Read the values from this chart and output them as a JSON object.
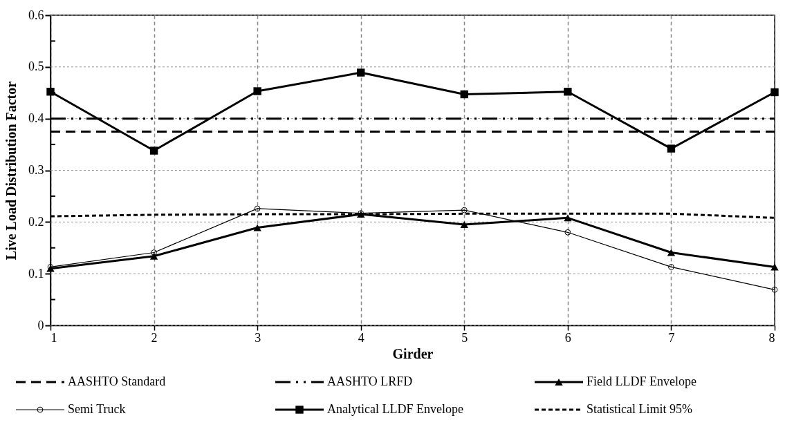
{
  "chart_data": {
    "type": "line",
    "xlabel": "Girder",
    "ylabel": "Live Load Distribution Factor",
    "x": [
      1,
      2,
      3,
      4,
      5,
      6,
      7,
      8
    ],
    "series": [
      {
        "name": "AASHTO Standard",
        "color": "#000000",
        "line_style": "dashed",
        "marker": "none",
        "values": [
          0.375,
          0.375,
          0.375,
          0.375,
          0.375,
          0.375,
          0.375,
          0.375
        ]
      },
      {
        "name": "AASHTO LRFD",
        "color": "#000000",
        "line_style": "dashdot",
        "marker": "none",
        "values": [
          0.4,
          0.4,
          0.4,
          0.4,
          0.4,
          0.4,
          0.4,
          0.4
        ]
      },
      {
        "name": "Field LLDF Envelope",
        "color": "#000000",
        "line_style": "solid",
        "marker": "triangle",
        "values": [
          0.11,
          0.134,
          0.189,
          0.215,
          0.195,
          0.208,
          0.141,
          0.113
        ]
      },
      {
        "name": "Semi Truck",
        "color": "#000000",
        "line_style": "solid",
        "marker": "circle",
        "values": [
          0.113,
          0.141,
          0.226,
          0.217,
          0.223,
          0.18,
          0.113,
          0.069
        ]
      },
      {
        "name": "Analytical LLDF Envelope",
        "color": "#000000",
        "line_style": "solid",
        "marker": "square",
        "values": [
          0.452,
          0.338,
          0.453,
          0.489,
          0.447,
          0.452,
          0.342,
          0.451
        ]
      },
      {
        "name": "Statistical Limit 95%",
        "color": "#000000",
        "line_style": "dotted",
        "marker": "none",
        "values": [
          0.211,
          0.214,
          0.215,
          0.215,
          0.216,
          0.216,
          0.216,
          0.208
        ]
      }
    ],
    "xlim": [
      1,
      8
    ],
    "xticks": [
      1,
      2,
      3,
      4,
      5,
      6,
      7,
      8
    ],
    "ylim": [
      0,
      0.6
    ],
    "yticks": [
      0,
      {
        "value": 0.05,
        "label": null
      },
      0.1,
      {
        "value": 0.15,
        "label": null
      },
      0.2,
      {
        "value": 0.25,
        "label": null
      },
      0.3,
      {
        "value": 0.35,
        "label": null
      },
      0.4,
      {
        "value": 0.45,
        "label": null
      },
      0.5,
      {
        "value": 0.55,
        "label": null
      },
      0.6
    ],
    "grid": true,
    "legend": "bottom"
  }
}
